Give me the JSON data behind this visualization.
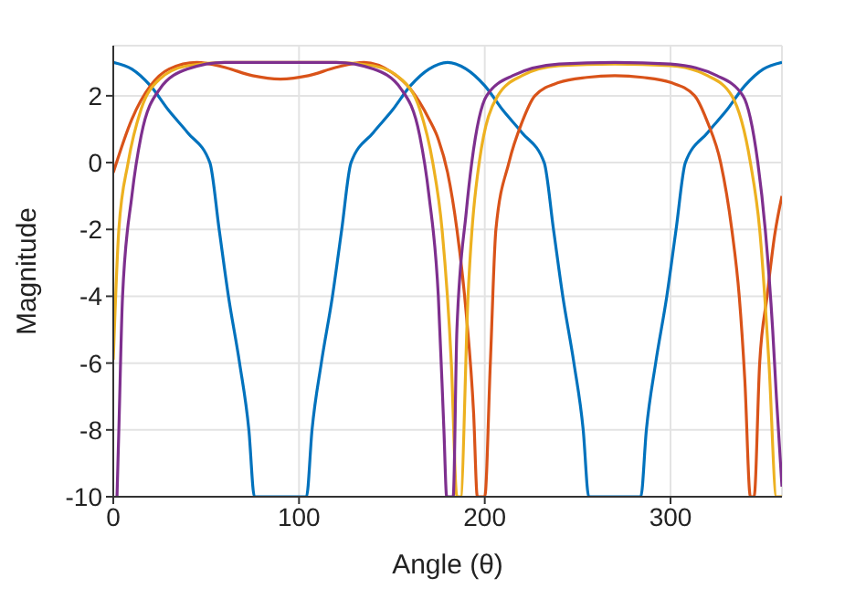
{
  "chart_data": {
    "type": "line",
    "xlabel": "Angle (θ)",
    "ylabel": "Magnitude",
    "xlim": [
      0,
      360
    ],
    "xticks": [
      0,
      100,
      200,
      300
    ],
    "ylim": [
      -10,
      3.5
    ],
    "yticks": [
      -10,
      -8,
      -6,
      -4,
      -2,
      0,
      2
    ],
    "grid": true,
    "marker": "none",
    "line_style": "solid",
    "series": [
      {
        "color": "#0072bd",
        "x": [
          0,
          10,
          20,
          30,
          40,
          52,
          57,
          62,
          68,
          73,
          76,
          104,
          107,
          112,
          118,
          123,
          128,
          140,
          150,
          160,
          170,
          180,
          190,
          200,
          210,
          220,
          232,
          237,
          242,
          248,
          253,
          256,
          284,
          287,
          292,
          298,
          303,
          308,
          320,
          330,
          340,
          350,
          360
        ],
        "values": [
          3,
          2.8,
          2.3,
          1.55,
          0.9,
          0,
          -2,
          -4,
          -6,
          -8,
          -10,
          -10,
          -8,
          -6,
          -4,
          -2,
          0,
          0.9,
          1.55,
          2.3,
          2.8,
          3,
          2.8,
          2.3,
          1.55,
          0.9,
          0,
          -2,
          -4,
          -6,
          -8,
          -10,
          -10,
          -8,
          -6,
          -4,
          -2,
          0,
          0.9,
          1.55,
          2.3,
          2.8,
          3
        ]
      },
      {
        "color": "#d95319",
        "x": [
          0,
          10,
          20,
          30,
          45,
          60,
          75,
          90,
          105,
          120,
          135,
          150,
          160,
          170,
          175,
          180,
          185,
          190,
          194,
          196,
          200,
          203,
          206,
          213,
          220,
          227,
          240,
          255,
          270,
          285,
          300,
          313,
          320,
          327,
          333,
          337,
          340,
          343,
          345,
          348,
          352,
          356,
          360
        ],
        "values": [
          -0.3,
          1.3,
          2.3,
          2.8,
          3,
          2.85,
          2.6,
          2.5,
          2.6,
          2.85,
          3,
          2.7,
          2.2,
          1.3,
          0.7,
          -0.3,
          -2,
          -4.5,
          -7.5,
          -10,
          -10,
          -6,
          -2,
          0,
          1.2,
          2,
          2.4,
          2.55,
          2.6,
          2.55,
          2.4,
          2,
          1.2,
          0,
          -2,
          -4,
          -6.5,
          -10,
          -10,
          -6,
          -4,
          -2.2,
          -1
        ]
      },
      {
        "color": "#edb120",
        "x": [
          0,
          3,
          8,
          15,
          25,
          40,
          60,
          90,
          120,
          140,
          155,
          165,
          172,
          177,
          182,
          185,
          187,
          191,
          197,
          207,
          220,
          240,
          270,
          300,
          320,
          333,
          343,
          348,
          353,
          357,
          360
        ],
        "values": [
          -5.9,
          -2,
          0,
          1.6,
          2.5,
          2.9,
          3,
          3,
          3,
          2.9,
          2.5,
          1.6,
          0,
          -2,
          -6,
          -10,
          -10,
          -4,
          0,
          2,
          2.6,
          2.9,
          2.95,
          2.9,
          2.6,
          2,
          0,
          -2,
          -6,
          -10,
          -10
        ]
      },
      {
        "color": "#7e2f8e",
        "x": [
          2,
          3,
          5,
          10,
          15,
          25,
          40,
          60,
          90,
          120,
          140,
          155,
          165,
          170,
          175,
          178,
          179.5,
          183,
          185,
          190,
          193,
          201,
          215,
          240,
          270,
          300,
          325,
          339,
          347,
          351,
          355,
          357,
          360
        ],
        "values": [
          -10,
          -8,
          -4,
          -1,
          0.8,
          2.2,
          2.8,
          3,
          3,
          3,
          2.8,
          2.2,
          0.8,
          -1,
          -4,
          -8,
          -10,
          -10,
          -5,
          -1.5,
          0,
          2,
          2.6,
          2.95,
          3,
          2.95,
          2.6,
          2,
          0,
          -2,
          -5,
          -7,
          -9.7
        ]
      }
    ]
  }
}
